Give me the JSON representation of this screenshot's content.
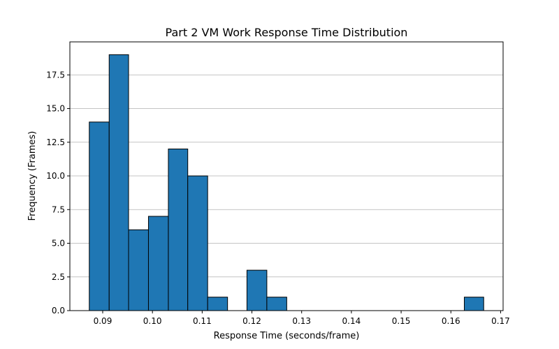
{
  "chart_data": {
    "type": "bar",
    "title": "Part 2 VM Work Response Time Distribution",
    "xlabel": "Response Time (seconds/frame)",
    "ylabel": "Frequency (Frames)",
    "xlim": [
      0.0834,
      0.1705
    ],
    "ylim": [
      0,
      19.95
    ],
    "x_ticks": [
      0.09,
      0.1,
      0.11,
      0.12,
      0.13,
      0.14,
      0.15,
      0.16,
      0.17
    ],
    "x_tick_labels": [
      "0.09",
      "0.10",
      "0.11",
      "0.12",
      "0.13",
      "0.14",
      "0.15",
      "0.16",
      "0.17"
    ],
    "y_ticks": [
      0,
      2.5,
      5,
      7.5,
      10,
      12.5,
      15,
      17.5
    ],
    "y_tick_labels": [
      "0.0",
      "2.5",
      "5.0",
      "7.5",
      "10.0",
      "12.5",
      "15.0",
      "17.5"
    ],
    "grid": "y",
    "bin_edges": [
      0.0873,
      0.0913,
      0.0952,
      0.0992,
      0.1032,
      0.1071,
      0.1111,
      0.1151,
      0.119,
      0.123,
      0.127,
      0.1309,
      0.1349,
      0.1389,
      0.1428,
      0.1468,
      0.1508,
      0.1547,
      0.1587,
      0.1627,
      0.1666
    ],
    "counts": [
      14,
      19,
      6,
      7,
      12,
      10,
      1,
      0,
      3,
      1,
      0,
      0,
      0,
      0,
      0,
      0,
      0,
      0,
      0,
      1
    ],
    "bar_color": "#1f77b4",
    "edge_color": "#000000",
    "grid_color": "#b0b0b0"
  }
}
